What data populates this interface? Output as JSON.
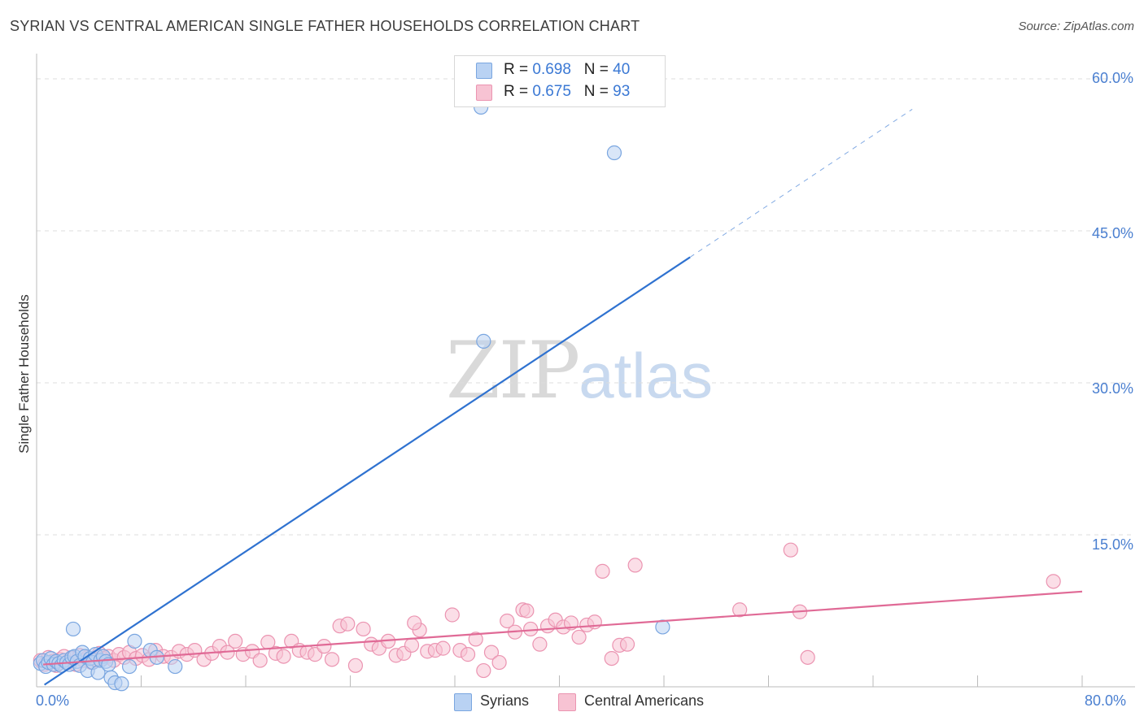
{
  "title": "SYRIAN VS CENTRAL AMERICAN SINGLE FATHER HOUSEHOLDS CORRELATION CHART",
  "source": "Source: ZipAtlas.com",
  "watermark": {
    "part1": "ZIP",
    "part2": "atlas"
  },
  "legend_top": [
    {
      "r_label": "R = ",
      "r_value": "0.698",
      "n_label": "N = ",
      "n_value": "40"
    },
    {
      "r_label": "R = ",
      "r_value": "0.675",
      "n_label": "N = ",
      "n_value": "93"
    }
  ],
  "legend_bottom": [
    {
      "label": "Syrians"
    },
    {
      "label": "Central Americans"
    }
  ],
  "y_axis_label": "Single Father Households",
  "y_ticks": [
    "15.0%",
    "30.0%",
    "45.0%",
    "60.0%"
  ],
  "x_ticks": {
    "left": "0.0%",
    "right": "80.0%"
  },
  "colors": {
    "syrian_fill": "#b9d2f3",
    "syrian_stroke": "#7aa6e0",
    "syrian_line": "#2f72d0",
    "central_fill": "#f7c3d3",
    "central_stroke": "#eb94b1",
    "central_line": "#e06a96",
    "grid": "#dddddd",
    "tick_text": "#4a7fd0"
  },
  "chart_data": {
    "type": "scatter",
    "title": "SYRIAN VS CENTRAL AMERICAN SINGLE FATHER HOUSEHOLDS CORRELATION CHART",
    "xlabel": "",
    "ylabel": "Single Father Households",
    "xlim": [
      0,
      80
    ],
    "ylim": [
      0,
      63
    ],
    "y_gridlines": [
      15,
      30,
      45,
      60
    ],
    "series": [
      {
        "name": "Syrians",
        "R": 0.698,
        "N": 40,
        "trend": {
          "x0": 0.6,
          "y0": 0.2,
          "x1": 50,
          "y1": 42.4,
          "dash_to_x": 67,
          "dash_to_y": 57.0
        },
        "points": [
          [
            0.3,
            2.3
          ],
          [
            0.5,
            2.6
          ],
          [
            0.7,
            2.0
          ],
          [
            0.9,
            2.4
          ],
          [
            1.1,
            2.8
          ],
          [
            1.3,
            2.2
          ],
          [
            1.5,
            2.5
          ],
          [
            1.7,
            2.3
          ],
          [
            1.9,
            2.1
          ],
          [
            2.1,
            2.6
          ],
          [
            2.3,
            2.4
          ],
          [
            2.5,
            2.2
          ],
          [
            2.7,
            2.9
          ],
          [
            2.9,
            3.0
          ],
          [
            3.1,
            2.5
          ],
          [
            3.3,
            2.1
          ],
          [
            3.5,
            3.4
          ],
          [
            3.7,
            3.0
          ],
          [
            3.9,
            1.6
          ],
          [
            4.1,
            2.8
          ],
          [
            4.3,
            2.4
          ],
          [
            4.5,
            3.2
          ],
          [
            4.7,
            1.4
          ],
          [
            4.9,
            2.6
          ],
          [
            5.1,
            3.0
          ],
          [
            5.3,
            2.5
          ],
          [
            5.5,
            2.2
          ],
          [
            5.7,
            0.9
          ],
          [
            6.0,
            0.4
          ],
          [
            6.5,
            0.3
          ],
          [
            7.1,
            2.0
          ],
          [
            7.5,
            4.5
          ],
          [
            8.7,
            3.6
          ],
          [
            9.2,
            2.9
          ],
          [
            10.6,
            2.0
          ],
          [
            2.8,
            5.7
          ],
          [
            34.0,
            57.2
          ],
          [
            44.2,
            52.7
          ],
          [
            34.2,
            34.1
          ],
          [
            47.9,
            5.9
          ]
        ]
      },
      {
        "name": "Central Americans",
        "R": 0.675,
        "N": 93,
        "trend": {
          "x0": 0.5,
          "y0": 2.2,
          "x1": 80,
          "y1": 9.4
        },
        "points": [
          [
            0.3,
            2.6
          ],
          [
            0.6,
            2.2
          ],
          [
            0.9,
            2.9
          ],
          [
            1.2,
            2.5
          ],
          [
            1.5,
            2.1
          ],
          [
            1.8,
            2.7
          ],
          [
            2.1,
            3.0
          ],
          [
            2.4,
            2.4
          ],
          [
            2.7,
            2.8
          ],
          [
            3.0,
            2.2
          ],
          [
            3.3,
            3.1
          ],
          [
            3.6,
            2.6
          ],
          [
            3.9,
            2.9
          ],
          [
            4.2,
            2.4
          ],
          [
            4.5,
            2.7
          ],
          [
            4.8,
            3.3
          ],
          [
            5.1,
            2.8
          ],
          [
            5.5,
            3.0
          ],
          [
            5.9,
            2.6
          ],
          [
            6.3,
            3.2
          ],
          [
            6.7,
            2.9
          ],
          [
            7.1,
            3.4
          ],
          [
            7.6,
            2.8
          ],
          [
            8.1,
            3.1
          ],
          [
            8.6,
            2.7
          ],
          [
            9.1,
            3.6
          ],
          [
            9.7,
            3.0
          ],
          [
            10.3,
            2.9
          ],
          [
            10.9,
            3.5
          ],
          [
            11.5,
            3.2
          ],
          [
            12.1,
            3.6
          ],
          [
            12.8,
            2.7
          ],
          [
            13.4,
            3.3
          ],
          [
            14.0,
            4.0
          ],
          [
            14.6,
            3.4
          ],
          [
            15.2,
            4.5
          ],
          [
            15.8,
            3.2
          ],
          [
            16.5,
            3.5
          ],
          [
            17.1,
            2.6
          ],
          [
            17.7,
            4.4
          ],
          [
            18.3,
            3.3
          ],
          [
            18.9,
            3.0
          ],
          [
            19.5,
            4.5
          ],
          [
            20.1,
            3.6
          ],
          [
            20.7,
            3.4
          ],
          [
            21.3,
            3.2
          ],
          [
            22.0,
            4.0
          ],
          [
            22.6,
            2.7
          ],
          [
            23.2,
            6.0
          ],
          [
            23.8,
            6.2
          ],
          [
            24.4,
            2.1
          ],
          [
            25.0,
            5.7
          ],
          [
            25.6,
            4.2
          ],
          [
            26.2,
            3.8
          ],
          [
            26.9,
            4.5
          ],
          [
            27.5,
            3.1
          ],
          [
            28.1,
            3.3
          ],
          [
            28.7,
            4.1
          ],
          [
            29.3,
            5.6
          ],
          [
            29.9,
            3.5
          ],
          [
            30.5,
            3.6
          ],
          [
            31.1,
            3.8
          ],
          [
            31.8,
            7.1
          ],
          [
            32.4,
            3.6
          ],
          [
            33.0,
            3.2
          ],
          [
            33.6,
            4.7
          ],
          [
            34.2,
            1.6
          ],
          [
            34.8,
            3.4
          ],
          [
            35.4,
            2.4
          ],
          [
            36.0,
            6.5
          ],
          [
            36.6,
            5.4
          ],
          [
            37.2,
            7.6
          ],
          [
            37.8,
            5.7
          ],
          [
            38.5,
            4.2
          ],
          [
            39.1,
            6.0
          ],
          [
            39.7,
            6.6
          ],
          [
            40.3,
            5.9
          ],
          [
            40.9,
            6.3
          ],
          [
            41.5,
            4.9
          ],
          [
            42.1,
            6.1
          ],
          [
            42.7,
            6.4
          ],
          [
            43.3,
            11.4
          ],
          [
            44.0,
            2.8
          ],
          [
            44.6,
            4.1
          ],
          [
            45.2,
            4.2
          ],
          [
            45.8,
            12.0
          ],
          [
            37.5,
            7.5
          ],
          [
            28.9,
            6.3
          ],
          [
            53.8,
            7.6
          ],
          [
            57.7,
            13.5
          ],
          [
            58.4,
            7.4
          ],
          [
            59.0,
            2.9
          ],
          [
            77.8,
            10.4
          ]
        ]
      }
    ]
  }
}
